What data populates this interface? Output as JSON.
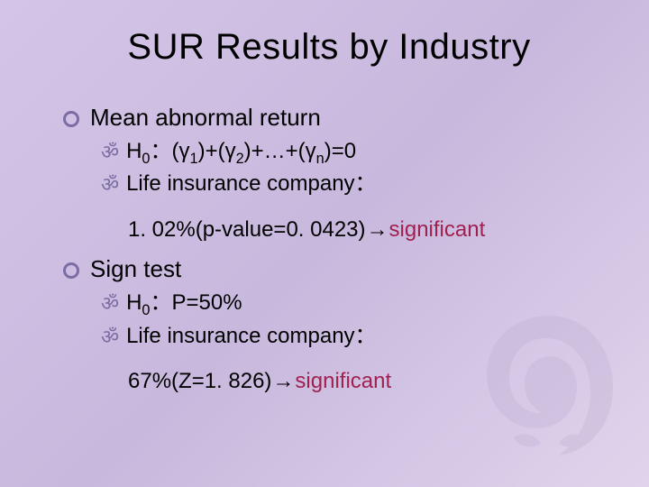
{
  "colors": {
    "bg_grad_start": "#d4c5e8",
    "bg_grad_mid": "#c8b8dd",
    "bg_grad_end": "#e0d4ec",
    "bullet_ring": "#7a6da3",
    "sub_bullet": "#7a6da3",
    "text": "#000000",
    "significant": "#a02050",
    "watermark": "#b7a7cc"
  },
  "typography": {
    "title_fontsize": 40,
    "top_fontsize": 26,
    "sub_fontsize": 24,
    "font_family": "Arial"
  },
  "title": "SUR Results by Industry",
  "items": [
    {
      "label": "Mean abnormal return",
      "subs": [
        {
          "text_html": "H<sub>0</sub>：(γ<sub>1</sub>)+(γ<sub>2</sub>)+…+(γ<sub>n</sub>)=0"
        },
        {
          "text": "Life insurance company：",
          "continuation": {
            "prefix": "1. 02%(p-value=0. 0423)",
            "arrow": "→",
            "signif": "significant"
          }
        }
      ]
    },
    {
      "label": "Sign test",
      "subs": [
        {
          "text_html": "H<sub>0</sub>：P=50%"
        },
        {
          "text": "Life insurance company：",
          "continuation": {
            "prefix": "67%(Z=1. 826)",
            "arrow": "→",
            "signif": "significant"
          }
        }
      ]
    }
  ]
}
